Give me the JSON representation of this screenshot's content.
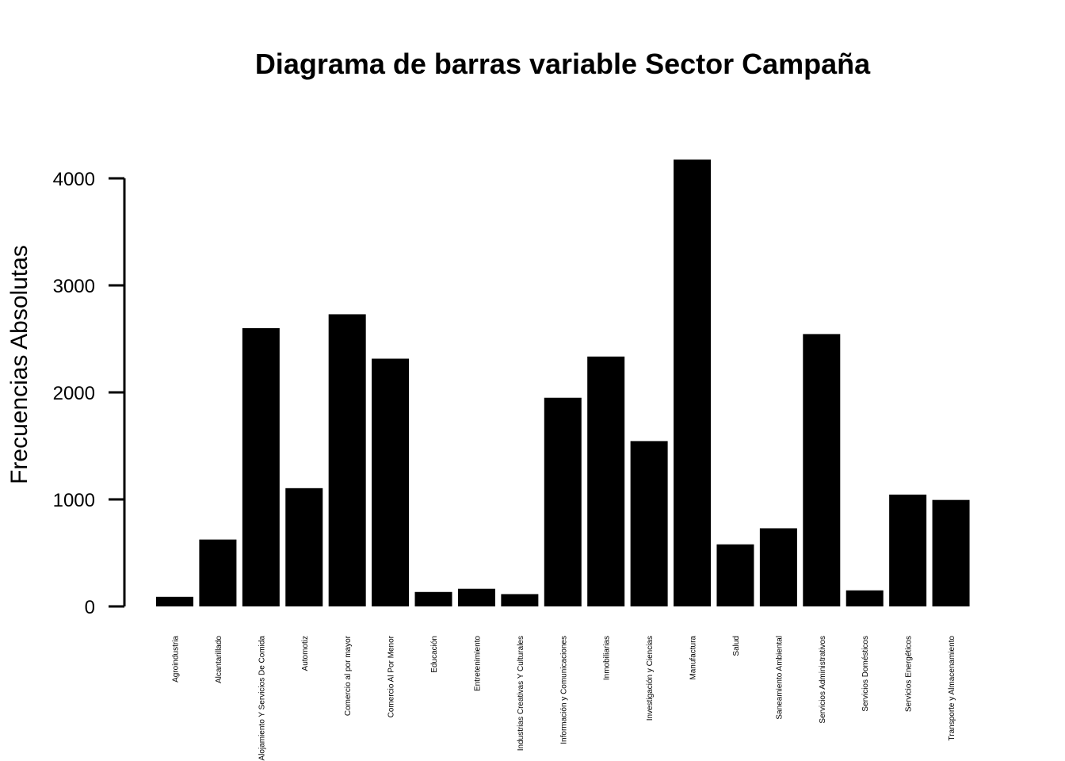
{
  "chart_data": {
    "type": "bar",
    "title": "Diagrama de barras variable Sector Campaña",
    "xlabel": "",
    "ylabel": "Frecuencias Absolutas",
    "ylim": [
      0,
      4000
    ],
    "yticks": [
      0,
      1000,
      2000,
      3000,
      4000
    ],
    "grid": false,
    "legend": "none",
    "bar_color": "#000000",
    "categories": [
      "Agroindustria",
      "Alcantarillado",
      "Alojamiento Y Servicios De Comida",
      "Automotiz",
      "Comercio al por mayor",
      "Comercio Al Por Menor",
      "Educación",
      "Entretenimiento",
      "Industrias Creativas Y Culturales",
      "Información y Comunicaciones",
      "Inmobiliarias",
      "Investigación y Ciencias",
      "Manufactura",
      "Salud",
      "Saneamiento Ambiental",
      "Servicios Administrativos",
      "Servicios Domésticos",
      "Servicios Energéticos",
      "Transporte y Almacenamiento"
    ],
    "values": [
      90,
      625,
      2600,
      1105,
      2730,
      2315,
      135,
      165,
      115,
      1950,
      2335,
      1545,
      4175,
      580,
      730,
      2545,
      150,
      1045,
      995
    ]
  }
}
